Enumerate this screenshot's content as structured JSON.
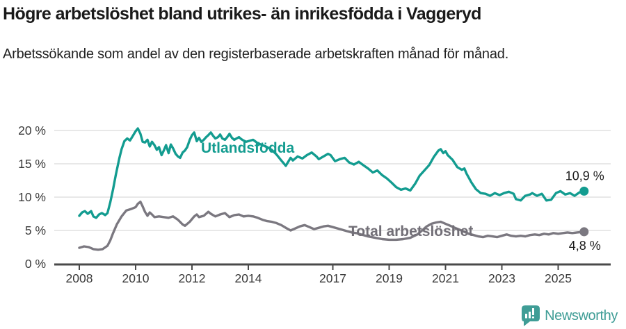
{
  "header": {
    "title": "Högre arbetslöshet bland utrikes- än inrikesfödda i Vaggeryd",
    "subtitle": "Arbetssökande som andel av den registerbaserade arbetskraften månad för månad."
  },
  "footer": {
    "brand": "Newsworthy"
  },
  "colors": {
    "utlandsfodda": "#139c90",
    "total": "#7b7880",
    "total_label": "#726f77",
    "grid": "#d9d9d9",
    "axis": "#4a4a4a",
    "tick_text": "#3a3a3a",
    "value_label": "#1c1c1c",
    "logo": "#3f9d96"
  },
  "chart_data": {
    "type": "line",
    "title": "Högre arbetslöshet bland utrikes- än inrikesfödda i Vaggeryd",
    "subtitle": "Arbetssökande som andel av den registerbaserade arbetskraften månad för månad.",
    "xlabel": "",
    "ylabel": "",
    "unit": "%",
    "grid": true,
    "legend_position": "inline-labels",
    "ylim": [
      0,
      21
    ],
    "xlim": [
      2007.1,
      2026.9
    ],
    "x_ticks": [
      {
        "year": 2008,
        "label": "2008"
      },
      {
        "year": 2010,
        "label": "2010"
      },
      {
        "year": 2012,
        "label": "2012"
      },
      {
        "year": 2014,
        "label": "2014"
      },
      {
        "year": 2017,
        "label": "2017"
      },
      {
        "year": 2019,
        "label": "2019"
      },
      {
        "year": 2021,
        "label": "2021"
      },
      {
        "year": 2023,
        "label": "2023"
      },
      {
        "year": 2025,
        "label": "2025"
      }
    ],
    "y_ticks": [
      {
        "value": 0,
        "label": "0 %"
      },
      {
        "value": 5,
        "label": "5 %"
      },
      {
        "value": 10,
        "label": "10 %"
      },
      {
        "value": 15,
        "label": "15 %"
      },
      {
        "value": 20,
        "label": "20 %"
      }
    ],
    "series": [
      {
        "name": "Utlandsfödda",
        "color": "#139c90",
        "end_label": "10,9 %",
        "end_value": 10.9,
        "points": [
          [
            2008.0,
            7.2
          ],
          [
            2008.1,
            7.7
          ],
          [
            2008.2,
            7.9
          ],
          [
            2008.3,
            7.5
          ],
          [
            2008.42,
            7.9
          ],
          [
            2008.5,
            7.1
          ],
          [
            2008.6,
            6.9
          ],
          [
            2008.7,
            7.4
          ],
          [
            2008.8,
            7.6
          ],
          [
            2008.92,
            7.3
          ],
          [
            2009.0,
            7.6
          ],
          [
            2009.1,
            9.2
          ],
          [
            2009.2,
            11.2
          ],
          [
            2009.3,
            13.4
          ],
          [
            2009.42,
            15.8
          ],
          [
            2009.5,
            17.2
          ],
          [
            2009.6,
            18.4
          ],
          [
            2009.7,
            18.8
          ],
          [
            2009.8,
            18.5
          ],
          [
            2009.9,
            19.2
          ],
          [
            2010.0,
            19.9
          ],
          [
            2010.08,
            20.3
          ],
          [
            2010.17,
            19.5
          ],
          [
            2010.25,
            18.3
          ],
          [
            2010.33,
            18.2
          ],
          [
            2010.42,
            18.6
          ],
          [
            2010.5,
            17.6
          ],
          [
            2010.58,
            18.3
          ],
          [
            2010.67,
            17.8
          ],
          [
            2010.75,
            17.1
          ],
          [
            2010.83,
            17.5
          ],
          [
            2010.92,
            16.3
          ],
          [
            2011.0,
            17.0
          ],
          [
            2011.08,
            17.8
          ],
          [
            2011.17,
            16.6
          ],
          [
            2011.25,
            17.9
          ],
          [
            2011.33,
            17.3
          ],
          [
            2011.42,
            16.5
          ],
          [
            2011.5,
            16.1
          ],
          [
            2011.58,
            15.9
          ],
          [
            2011.67,
            16.7
          ],
          [
            2011.75,
            17.0
          ],
          [
            2011.83,
            17.5
          ],
          [
            2011.92,
            18.6
          ],
          [
            2012.0,
            19.3
          ],
          [
            2012.08,
            19.7
          ],
          [
            2012.17,
            18.4
          ],
          [
            2012.25,
            18.9
          ],
          [
            2012.33,
            18.3
          ],
          [
            2012.42,
            18.6
          ],
          [
            2012.5,
            19.0
          ],
          [
            2012.58,
            19.3
          ],
          [
            2012.67,
            19.7
          ],
          [
            2012.75,
            19.2
          ],
          [
            2012.83,
            18.8
          ],
          [
            2012.92,
            19.0
          ],
          [
            2013.0,
            19.4
          ],
          [
            2013.08,
            18.8
          ],
          [
            2013.17,
            18.6
          ],
          [
            2013.25,
            19.0
          ],
          [
            2013.33,
            19.5
          ],
          [
            2013.42,
            18.9
          ],
          [
            2013.5,
            18.6
          ],
          [
            2013.58,
            18.8
          ],
          [
            2013.67,
            19.0
          ],
          [
            2013.75,
            18.7
          ],
          [
            2013.83,
            18.5
          ],
          [
            2013.92,
            18.3
          ],
          [
            2014.0,
            18.4
          ],
          [
            2014.17,
            18.6
          ],
          [
            2014.33,
            18.1
          ],
          [
            2014.5,
            17.8
          ],
          [
            2014.67,
            17.5
          ],
          [
            2014.83,
            17.1
          ],
          [
            2015.0,
            16.4
          ],
          [
            2015.17,
            15.5
          ],
          [
            2015.33,
            14.7
          ],
          [
            2015.5,
            15.9
          ],
          [
            2015.58,
            15.5
          ],
          [
            2015.75,
            16.1
          ],
          [
            2015.92,
            15.8
          ],
          [
            2016.08,
            16.3
          ],
          [
            2016.25,
            16.7
          ],
          [
            2016.42,
            16.1
          ],
          [
            2016.5,
            15.7
          ],
          [
            2016.67,
            16.1
          ],
          [
            2016.83,
            16.5
          ],
          [
            2016.92,
            16.3
          ],
          [
            2017.08,
            15.4
          ],
          [
            2017.25,
            15.7
          ],
          [
            2017.42,
            15.9
          ],
          [
            2017.58,
            15.2
          ],
          [
            2017.75,
            14.9
          ],
          [
            2017.92,
            15.3
          ],
          [
            2018.08,
            14.8
          ],
          [
            2018.25,
            14.3
          ],
          [
            2018.42,
            13.7
          ],
          [
            2018.58,
            14.0
          ],
          [
            2018.75,
            13.3
          ],
          [
            2018.92,
            12.8
          ],
          [
            2019.08,
            12.2
          ],
          [
            2019.25,
            11.5
          ],
          [
            2019.42,
            11.1
          ],
          [
            2019.58,
            11.3
          ],
          [
            2019.75,
            11.0
          ],
          [
            2019.92,
            12.0
          ],
          [
            2020.08,
            13.2
          ],
          [
            2020.25,
            14.0
          ],
          [
            2020.42,
            14.8
          ],
          [
            2020.58,
            16.0
          ],
          [
            2020.75,
            17.0
          ],
          [
            2020.83,
            17.2
          ],
          [
            2020.92,
            16.6
          ],
          [
            2021.0,
            16.9
          ],
          [
            2021.08,
            16.3
          ],
          [
            2021.25,
            15.6
          ],
          [
            2021.42,
            14.5
          ],
          [
            2021.58,
            14.1
          ],
          [
            2021.67,
            14.3
          ],
          [
            2021.75,
            13.5
          ],
          [
            2021.92,
            12.2
          ],
          [
            2022.08,
            11.2
          ],
          [
            2022.25,
            10.6
          ],
          [
            2022.42,
            10.5
          ],
          [
            2022.58,
            10.2
          ],
          [
            2022.75,
            10.6
          ],
          [
            2022.92,
            10.3
          ],
          [
            2023.08,
            10.6
          ],
          [
            2023.25,
            10.8
          ],
          [
            2023.42,
            10.5
          ],
          [
            2023.5,
            9.7
          ],
          [
            2023.67,
            9.5
          ],
          [
            2023.83,
            10.2
          ],
          [
            2024.0,
            10.4
          ],
          [
            2024.08,
            10.6
          ],
          [
            2024.25,
            10.2
          ],
          [
            2024.42,
            10.5
          ],
          [
            2024.58,
            9.5
          ],
          [
            2024.75,
            9.6
          ],
          [
            2024.92,
            10.6
          ],
          [
            2025.08,
            10.9
          ],
          [
            2025.25,
            10.4
          ],
          [
            2025.42,
            10.6
          ],
          [
            2025.58,
            10.2
          ],
          [
            2025.75,
            10.7
          ],
          [
            2025.92,
            10.9
          ]
        ]
      },
      {
        "name": "Total arbetslöshet",
        "color": "#7b7880",
        "end_label": "4,8 %",
        "end_value": 4.8,
        "points": [
          [
            2008.0,
            2.4
          ],
          [
            2008.17,
            2.6
          ],
          [
            2008.33,
            2.5
          ],
          [
            2008.5,
            2.2
          ],
          [
            2008.67,
            2.1
          ],
          [
            2008.83,
            2.2
          ],
          [
            2009.0,
            2.7
          ],
          [
            2009.1,
            3.5
          ],
          [
            2009.2,
            4.6
          ],
          [
            2009.33,
            5.9
          ],
          [
            2009.5,
            7.1
          ],
          [
            2009.67,
            8.0
          ],
          [
            2009.83,
            8.2
          ],
          [
            2010.0,
            8.5
          ],
          [
            2010.08,
            9.0
          ],
          [
            2010.17,
            9.3
          ],
          [
            2010.25,
            8.6
          ],
          [
            2010.33,
            7.8
          ],
          [
            2010.42,
            7.2
          ],
          [
            2010.5,
            7.7
          ],
          [
            2010.58,
            7.4
          ],
          [
            2010.67,
            7.0
          ],
          [
            2010.83,
            7.1
          ],
          [
            2011.0,
            7.0
          ],
          [
            2011.17,
            6.9
          ],
          [
            2011.33,
            7.1
          ],
          [
            2011.5,
            6.6
          ],
          [
            2011.67,
            5.9
          ],
          [
            2011.75,
            5.7
          ],
          [
            2011.92,
            6.3
          ],
          [
            2012.08,
            7.1
          ],
          [
            2012.17,
            7.4
          ],
          [
            2012.25,
            7.0
          ],
          [
            2012.42,
            7.2
          ],
          [
            2012.58,
            7.8
          ],
          [
            2012.67,
            7.5
          ],
          [
            2012.83,
            7.1
          ],
          [
            2013.0,
            7.4
          ],
          [
            2013.17,
            7.6
          ],
          [
            2013.33,
            7.0
          ],
          [
            2013.5,
            7.3
          ],
          [
            2013.67,
            7.4
          ],
          [
            2013.83,
            7.1
          ],
          [
            2014.0,
            7.2
          ],
          [
            2014.17,
            7.1
          ],
          [
            2014.33,
            6.9
          ],
          [
            2014.5,
            6.6
          ],
          [
            2014.67,
            6.4
          ],
          [
            2014.83,
            6.3
          ],
          [
            2015.0,
            6.1
          ],
          [
            2015.17,
            5.8
          ],
          [
            2015.33,
            5.4
          ],
          [
            2015.5,
            5.0
          ],
          [
            2015.67,
            5.3
          ],
          [
            2015.83,
            5.6
          ],
          [
            2016.0,
            5.8
          ],
          [
            2016.17,
            5.5
          ],
          [
            2016.33,
            5.2
          ],
          [
            2016.5,
            5.4
          ],
          [
            2016.67,
            5.6
          ],
          [
            2016.83,
            5.7
          ],
          [
            2017.0,
            5.5
          ],
          [
            2017.17,
            5.3
          ],
          [
            2017.33,
            5.1
          ],
          [
            2017.5,
            4.9
          ],
          [
            2017.67,
            4.7
          ],
          [
            2017.83,
            4.6
          ],
          [
            2018.0,
            4.4
          ],
          [
            2018.25,
            4.1
          ],
          [
            2018.5,
            3.9
          ],
          [
            2018.75,
            3.7
          ],
          [
            2019.0,
            3.6
          ],
          [
            2019.25,
            3.6
          ],
          [
            2019.5,
            3.7
          ],
          [
            2019.75,
            3.9
          ],
          [
            2020.0,
            4.4
          ],
          [
            2020.17,
            5.0
          ],
          [
            2020.33,
            5.6
          ],
          [
            2020.5,
            6.0
          ],
          [
            2020.67,
            6.2
          ],
          [
            2020.83,
            6.3
          ],
          [
            2021.0,
            6.0
          ],
          [
            2021.17,
            5.7
          ],
          [
            2021.33,
            5.4
          ],
          [
            2021.5,
            5.1
          ],
          [
            2021.67,
            4.8
          ],
          [
            2021.83,
            4.5
          ],
          [
            2022.0,
            4.3
          ],
          [
            2022.17,
            4.1
          ],
          [
            2022.33,
            4.0
          ],
          [
            2022.5,
            4.2
          ],
          [
            2022.67,
            4.1
          ],
          [
            2022.83,
            4.0
          ],
          [
            2023.0,
            4.2
          ],
          [
            2023.17,
            4.4
          ],
          [
            2023.33,
            4.2
          ],
          [
            2023.5,
            4.1
          ],
          [
            2023.67,
            4.2
          ],
          [
            2023.83,
            4.1
          ],
          [
            2024.0,
            4.3
          ],
          [
            2024.17,
            4.4
          ],
          [
            2024.33,
            4.3
          ],
          [
            2024.5,
            4.5
          ],
          [
            2024.67,
            4.4
          ],
          [
            2024.83,
            4.6
          ],
          [
            2025.0,
            4.5
          ],
          [
            2025.17,
            4.6
          ],
          [
            2025.33,
            4.7
          ],
          [
            2025.5,
            4.6
          ],
          [
            2025.67,
            4.7
          ],
          [
            2025.92,
            4.8
          ]
        ]
      }
    ]
  }
}
